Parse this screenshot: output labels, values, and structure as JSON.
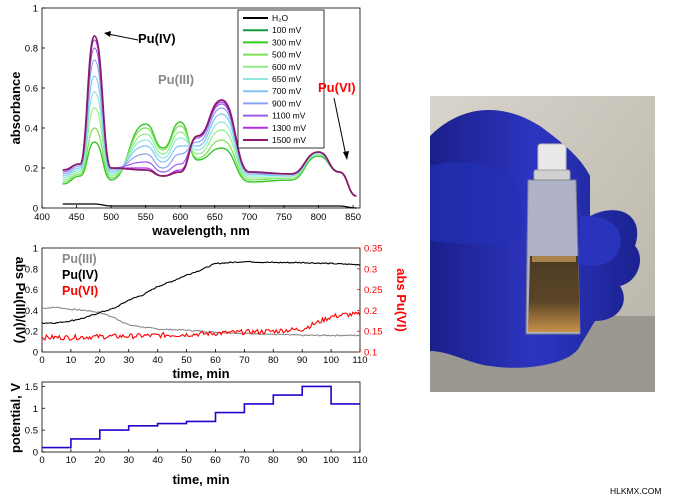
{
  "credit": "HLKMX.COM",
  "colors": {
    "pu3": "#8a8a8a",
    "pu4": "#000000",
    "pu6": "#ff0000",
    "potential": "#2a00cc"
  },
  "chart_data": [
    {
      "type": "line",
      "xlabel": "wavelength, nm",
      "ylabel": "absorbance",
      "xlim": [
        400,
        860
      ],
      "ylim": [
        0,
        1
      ],
      "xticks": [
        "400",
        "450",
        "500",
        "550",
        "600",
        "650",
        "700",
        "750",
        "800",
        "850"
      ],
      "yticks": [
        "0",
        "0.2",
        "0.4",
        "0.6",
        "0.8",
        "1"
      ],
      "legend": {
        "placement": "top-right",
        "entries": [
          "H₂O",
          "100 mV",
          "300 mV",
          "500 mV",
          "600 mV",
          "650 mV",
          "700 mV",
          "900 mV",
          "1100 mV",
          "1300 mV",
          "1500 mV"
        ]
      },
      "annotations": [
        {
          "text": "Pu(IV)",
          "color": "#000000",
          "target_x": 476,
          "target_y": 0.86
        },
        {
          "text": "Pu(III)",
          "color": "#8a8a8a"
        },
        {
          "text": "Pu(VI)",
          "color": "#ff0000",
          "target_x": 838,
          "target_y": 0.18
        }
      ],
      "peaks": {
        "x": [
          430,
          455,
          476,
          500,
          550,
          575,
          600,
          625,
          660,
          700,
          760,
          800,
          830,
          855
        ],
        "note": "absorbance at listed wavelengths for each series"
      },
      "series": [
        {
          "name": "H₂O",
          "color": "#000000",
          "values": [
            0.02,
            0.02,
            0.02,
            0.01,
            0.01,
            0.01,
            0.01,
            0.01,
            0.01,
            0.01,
            0.01,
            0.01,
            0.01,
            0.0
          ]
        },
        {
          "name": "100 mV",
          "color": "#0f9a3c",
          "values": [
            0.12,
            0.16,
            0.33,
            0.14,
            0.42,
            0.3,
            0.43,
            0.24,
            0.3,
            0.13,
            0.14,
            0.26,
            0.18,
            0.06
          ]
        },
        {
          "name": "300 mV",
          "color": "#33cc22",
          "values": [
            0.12,
            0.16,
            0.33,
            0.14,
            0.42,
            0.3,
            0.43,
            0.24,
            0.3,
            0.13,
            0.14,
            0.26,
            0.18,
            0.06
          ]
        },
        {
          "name": "500 mV",
          "color": "#7ee05a",
          "values": [
            0.13,
            0.17,
            0.4,
            0.15,
            0.4,
            0.29,
            0.41,
            0.25,
            0.34,
            0.14,
            0.15,
            0.27,
            0.18,
            0.06
          ]
        },
        {
          "name": "600 mV",
          "color": "#8ff08a",
          "values": [
            0.14,
            0.18,
            0.5,
            0.16,
            0.37,
            0.27,
            0.38,
            0.27,
            0.39,
            0.15,
            0.15,
            0.27,
            0.18,
            0.06
          ]
        },
        {
          "name": "650 mV",
          "color": "#8ee6e0",
          "values": [
            0.15,
            0.19,
            0.58,
            0.17,
            0.34,
            0.25,
            0.35,
            0.29,
            0.43,
            0.16,
            0.16,
            0.27,
            0.18,
            0.06
          ]
        },
        {
          "name": "700 mV",
          "color": "#7ec8f0",
          "values": [
            0.16,
            0.2,
            0.66,
            0.18,
            0.31,
            0.23,
            0.31,
            0.31,
            0.47,
            0.17,
            0.16,
            0.28,
            0.18,
            0.06
          ]
        },
        {
          "name": "900 mV",
          "color": "#8aa4f0",
          "values": [
            0.17,
            0.21,
            0.74,
            0.19,
            0.27,
            0.2,
            0.27,
            0.33,
            0.5,
            0.17,
            0.17,
            0.28,
            0.18,
            0.06
          ]
        },
        {
          "name": "1100 mV",
          "color": "#9a5cf0",
          "values": [
            0.18,
            0.22,
            0.8,
            0.2,
            0.23,
            0.18,
            0.22,
            0.35,
            0.52,
            0.18,
            0.17,
            0.28,
            0.18,
            0.06
          ]
        },
        {
          "name": "1300 mV",
          "color": "#b42fe8",
          "values": [
            0.19,
            0.22,
            0.84,
            0.2,
            0.2,
            0.16,
            0.19,
            0.36,
            0.53,
            0.18,
            0.17,
            0.28,
            0.18,
            0.06
          ]
        },
        {
          "name": "1500 mV",
          "color": "#8a1a6a",
          "values": [
            0.19,
            0.22,
            0.86,
            0.2,
            0.19,
            0.16,
            0.18,
            0.36,
            0.54,
            0.18,
            0.17,
            0.28,
            0.18,
            0.06
          ]
        }
      ]
    },
    {
      "type": "line",
      "xlabel": "time, min",
      "ylabel": "abs Pu(III)/(IV)",
      "ylabel_right": "abs Pu(VI)",
      "xlim": [
        0,
        110
      ],
      "ylim": [
        0,
        1
      ],
      "ylim_right": [
        0.1,
        0.35
      ],
      "xticks": [
        "0",
        "10",
        "20",
        "30",
        "40",
        "50",
        "60",
        "70",
        "80",
        "90",
        "100",
        "110"
      ],
      "yticks": [
        "0",
        "0.2",
        "0.4",
        "0.6",
        "0.8",
        "1"
      ],
      "yticks_right": [
        "0.1",
        "0.15",
        "0.2",
        "0.25",
        "0.3",
        "0.35"
      ],
      "legend": {
        "placement": "top-left"
      },
      "series": [
        {
          "name": "Pu(III)",
          "color": "#8a8a8a",
          "axis": "left",
          "x": [
            0,
            5,
            10,
            15,
            20,
            25,
            30,
            40,
            50,
            60,
            70,
            80,
            90,
            100,
            110
          ],
          "y": [
            0.42,
            0.43,
            0.41,
            0.4,
            0.38,
            0.33,
            0.26,
            0.22,
            0.21,
            0.19,
            0.18,
            0.17,
            0.16,
            0.16,
            0.16
          ]
        },
        {
          "name": "Pu(IV)",
          "color": "#000000",
          "axis": "left",
          "x": [
            0,
            5,
            10,
            15,
            20,
            25,
            30,
            35,
            40,
            45,
            50,
            55,
            60,
            70,
            80,
            90,
            100,
            110
          ],
          "y": [
            0.28,
            0.28,
            0.3,
            0.33,
            0.38,
            0.42,
            0.5,
            0.55,
            0.63,
            0.68,
            0.74,
            0.79,
            0.85,
            0.87,
            0.86,
            0.86,
            0.85,
            0.84
          ]
        },
        {
          "name": "Pu(VI)",
          "color": "#ff0000",
          "axis": "right",
          "x": [
            0,
            10,
            20,
            30,
            40,
            50,
            60,
            70,
            80,
            90,
            95,
            100,
            105,
            110
          ],
          "y": [
            0.135,
            0.135,
            0.137,
            0.138,
            0.14,
            0.142,
            0.145,
            0.148,
            0.15,
            0.155,
            0.17,
            0.185,
            0.19,
            0.19
          ]
        }
      ]
    },
    {
      "type": "line",
      "xlabel": "time, min",
      "ylabel": "potential, V",
      "xlim": [
        0,
        110
      ],
      "ylim": [
        0,
        1.6
      ],
      "xticks": [
        "0",
        "10",
        "20",
        "30",
        "40",
        "50",
        "60",
        "70",
        "80",
        "90",
        "100",
        "110"
      ],
      "yticks": [
        "0",
        "0.5",
        "1",
        "1.5"
      ],
      "series": [
        {
          "color": "#2a00cc",
          "step": true,
          "x": [
            0,
            10,
            20,
            30,
            40,
            50,
            60,
            70,
            80,
            90,
            100,
            110
          ],
          "y": [
            0.1,
            0.3,
            0.5,
            0.6,
            0.65,
            0.7,
            0.9,
            1.1,
            1.3,
            1.5,
            1.1,
            1.1
          ]
        }
      ]
    }
  ]
}
